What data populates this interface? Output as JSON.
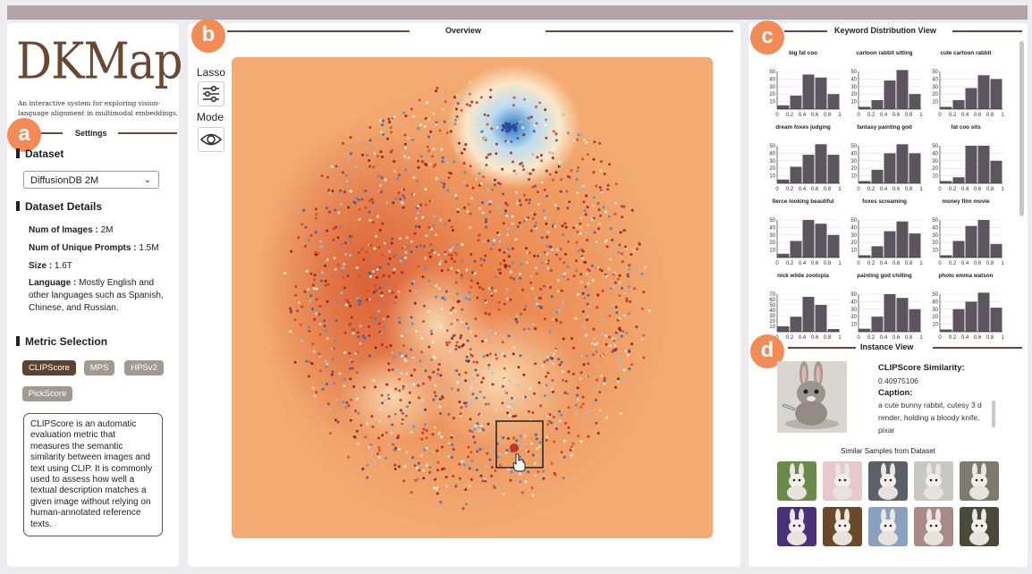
{
  "app": {
    "logo": "DKMap",
    "tagline": "An interactive system for exploring vision-language alignment in multimodal embeddings."
  },
  "badges": {
    "a": "a",
    "b": "b",
    "c": "c",
    "d": "d"
  },
  "settings": {
    "header": "Settings",
    "dataset_title": "Dataset",
    "dataset_value": "DiffusionDB 2M",
    "details_title": "Dataset Details",
    "details": [
      {
        "label": "Num of Images :",
        "value": " 2M"
      },
      {
        "label": "Num of Unique Prompts :",
        "value": " 1.5M"
      },
      {
        "label": "Size :",
        "value": " 1.6T"
      }
    ],
    "language_label": "Language :",
    "language_value": " Mostly English and other languages such as Spanish, Chinese, and Russian.",
    "metric_title": "Metric Selection",
    "metrics": [
      "CLIPScore",
      "MPS",
      "HPSv2",
      "PickScore"
    ],
    "active_metric": "CLIPScore",
    "metric_description": "CLIPScore is an automatic evaluation metric that measures the semantic similarity between images and text using CLIP. It is commonly used to assess how well a textual description matches a given image without relying on human-annotated reference texts."
  },
  "overview": {
    "header": "Overview",
    "lasso_label": "Lasso",
    "mode_label": "Mode"
  },
  "keyword_view": {
    "header": "Keyword Distribution View",
    "y_ticks": [
      10,
      20,
      30,
      40,
      50
    ],
    "x_ticks": [
      "0",
      "0.2",
      "0.4",
      "0.6",
      "0.8",
      "1"
    ],
    "charts": [
      {
        "title": "big fat coo",
        "values": [
          5,
          18,
          46,
          42,
          20
        ],
        "y_ticks": [
          10,
          20,
          30,
          40,
          50
        ]
      },
      {
        "title": "cartoon rabbit sitting",
        "values": [
          3,
          12,
          38,
          52,
          20
        ],
        "y_ticks": [
          10,
          20,
          30,
          40,
          50
        ]
      },
      {
        "title": "cute cartoon rabbit",
        "values": [
          3,
          12,
          28,
          45,
          40
        ],
        "y_ticks": [
          10,
          20,
          30,
          40,
          50
        ]
      },
      {
        "title": "dream foxes judging",
        "values": [
          5,
          22,
          38,
          52,
          38
        ],
        "y_ticks": [
          10,
          20,
          30,
          40,
          50
        ]
      },
      {
        "title": "fantasy painting god",
        "values": [
          3,
          18,
          40,
          52,
          40
        ],
        "y_ticks": [
          10,
          20,
          30,
          40,
          50
        ]
      },
      {
        "title": "fat coo sits",
        "values": [
          3,
          8,
          50,
          50,
          30
        ],
        "y_ticks": [
          10,
          20,
          30,
          40,
          50
        ]
      },
      {
        "title": "fierce looking beautiful",
        "values": [
          5,
          22,
          50,
          45,
          30
        ],
        "y_ticks": [
          10,
          20,
          30,
          40,
          50
        ]
      },
      {
        "title": "foxes screaming",
        "values": [
          3,
          15,
          35,
          48,
          32
        ],
        "y_ticks": [
          10,
          20,
          30,
          40,
          50
        ]
      },
      {
        "title": "money film movie",
        "values": [
          3,
          22,
          42,
          50,
          18
        ],
        "y_ticks": [
          10,
          20,
          30,
          40,
          50
        ]
      },
      {
        "title": "nick wilde zootopia",
        "values": [
          10,
          28,
          65,
          50,
          5
        ],
        "y_ticks": [
          10,
          20,
          30,
          40,
          50,
          60,
          70
        ]
      },
      {
        "title": "painting god chilling",
        "values": [
          4,
          20,
          50,
          45,
          30
        ],
        "y_ticks": [
          10,
          20,
          30,
          40,
          50
        ]
      },
      {
        "title": "photo emma watson",
        "values": [
          3,
          30,
          40,
          52,
          32
        ],
        "y_ticks": [
          10,
          20,
          30,
          40,
          50
        ]
      }
    ]
  },
  "instance_view": {
    "header": "Instance View",
    "similarity_label": "CLIPScore Similarity:",
    "similarity_value": "0.40975106",
    "caption_label": "Caption:",
    "caption_value": "a cute bunny rabbit, cutesy 3 d render, holding a bloody knife, pixar",
    "similar_title": "Similar Samples from Dataset",
    "thumb_colors": [
      "#6a8a4a",
      "#e7c8cc",
      "#5b6166",
      "#c7c7c4",
      "#7f7a70",
      "#4a2f7a",
      "#6a4a2a",
      "#8aa0c0",
      "#a88a88",
      "#4a4a3a"
    ]
  },
  "colors": {
    "accent": "#f28b55",
    "brand": "#6b4630",
    "bar": "#5c5560"
  }
}
